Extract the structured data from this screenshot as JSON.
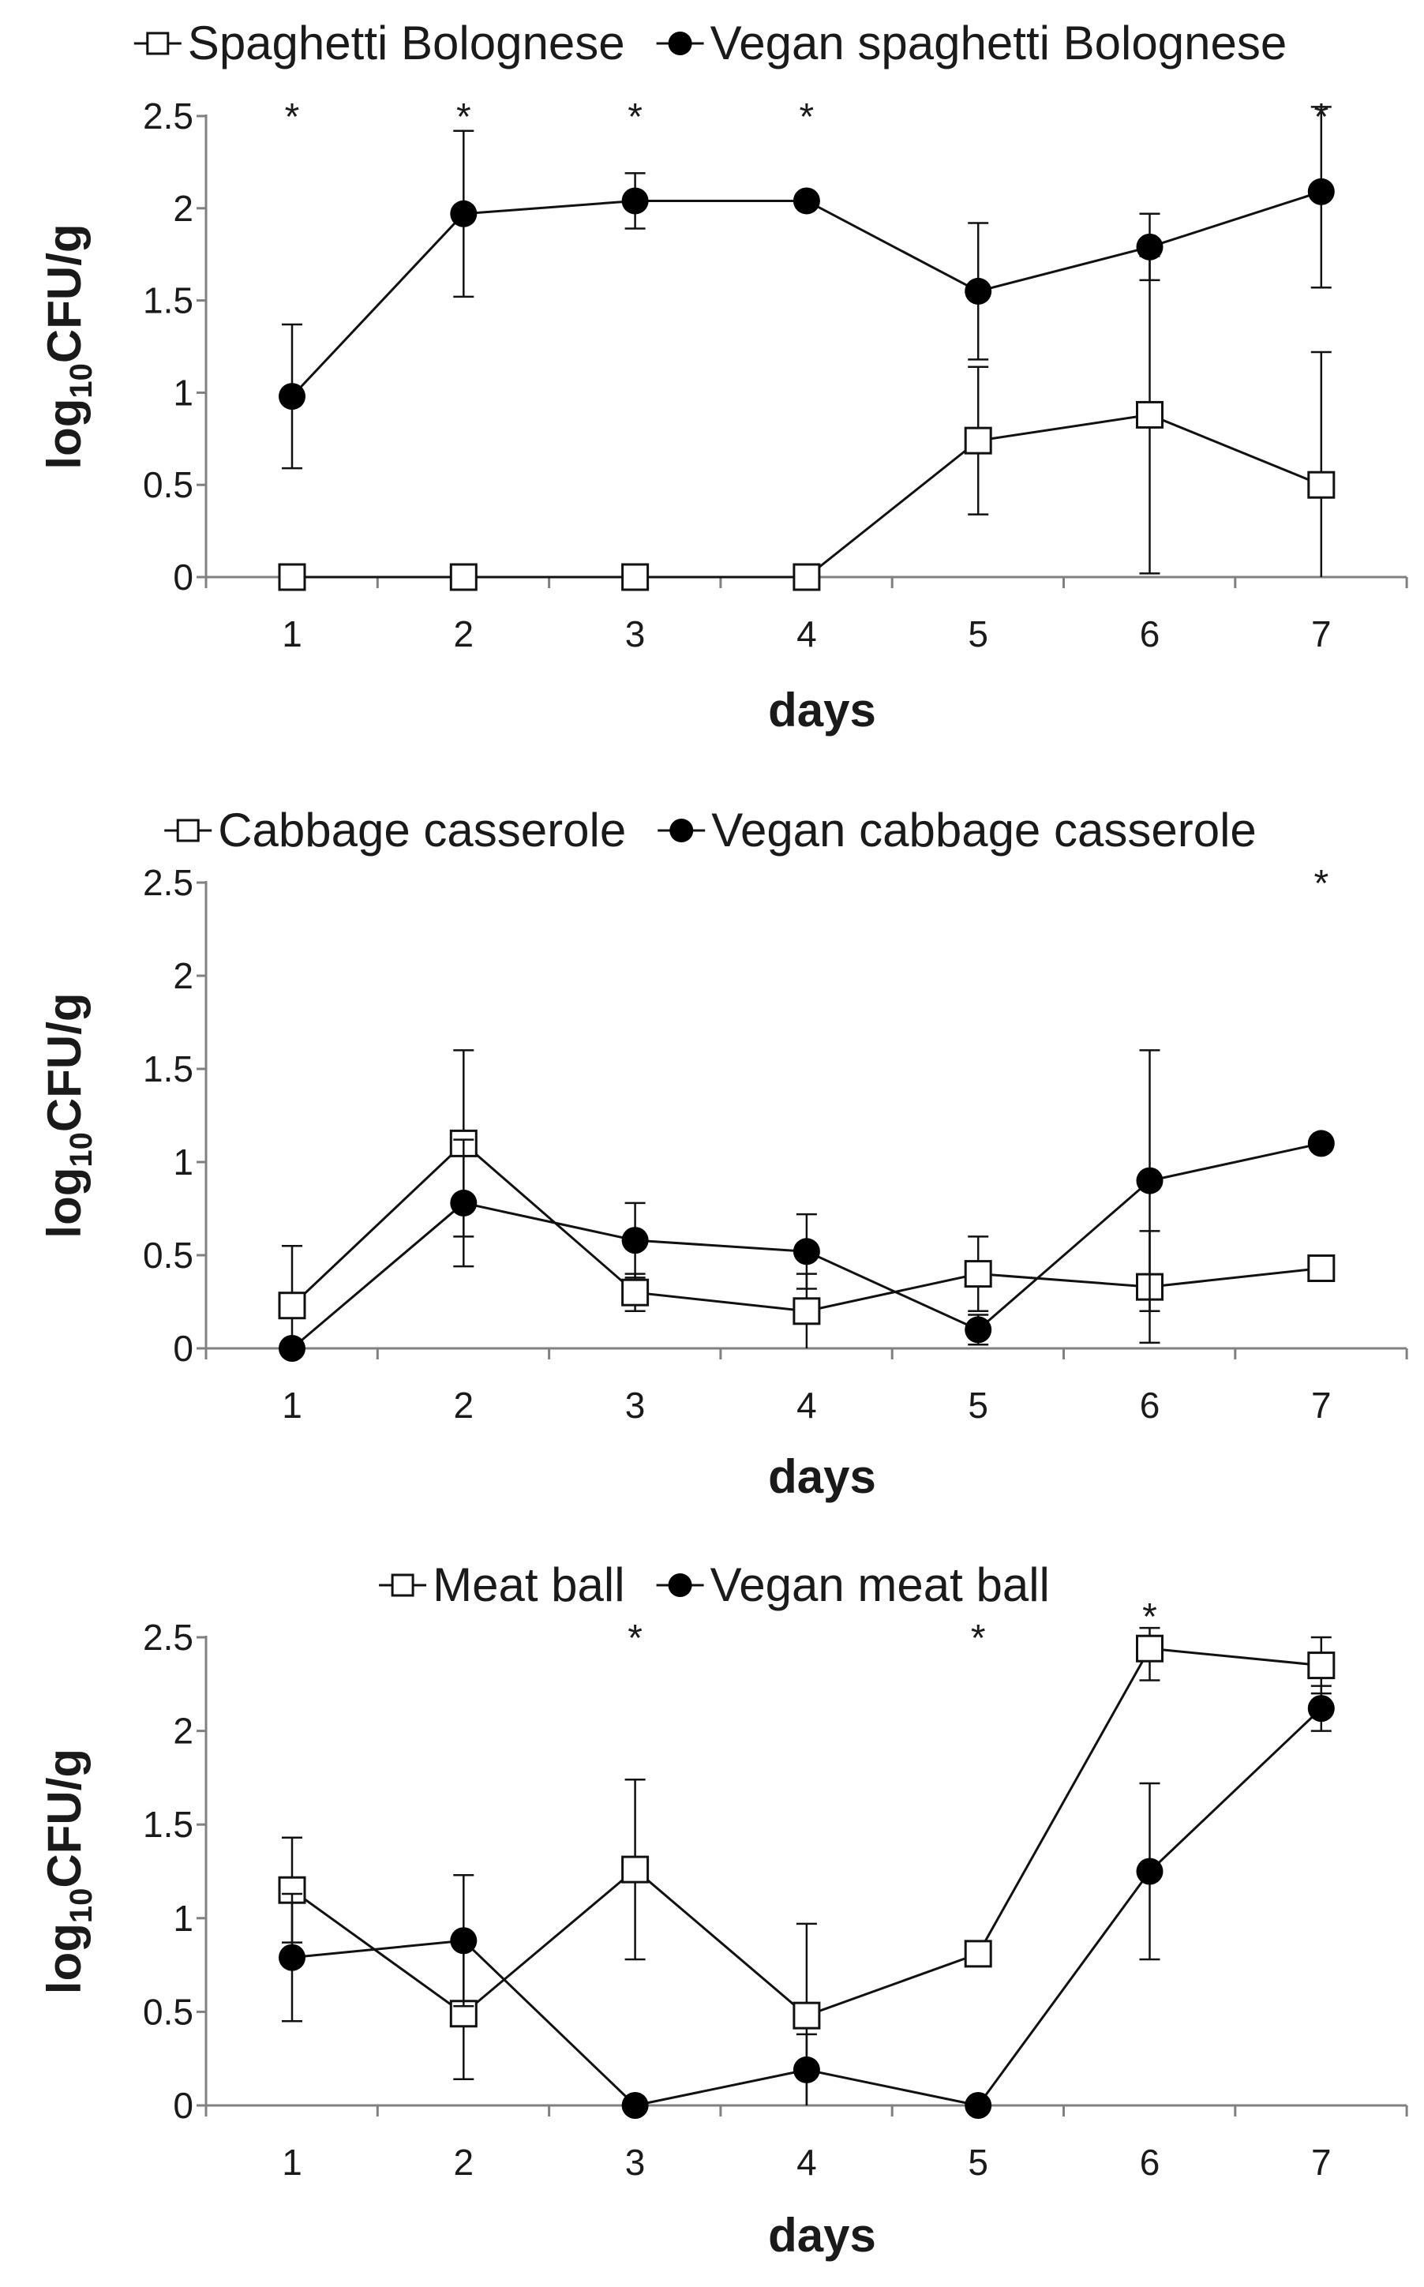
{
  "figure": {
    "panels": 3
  },
  "chart_data": [
    {
      "type": "line",
      "xlabel": "days",
      "ylabel_main": "log",
      "ylabel_sub": "10",
      "ylabel_tail": "CFU/g",
      "x": [
        1,
        2,
        3,
        4,
        5,
        6,
        7
      ],
      "ylim": [
        0,
        2.5
      ],
      "yticks": [
        "0",
        "0.5",
        "1",
        "1.5",
        "2",
        "2.5"
      ],
      "legend_position": "top",
      "series": [
        {
          "name": "Spaghetti Bolognese",
          "marker": "open-square",
          "values": [
            0,
            0,
            0,
            0,
            0.74,
            0.88,
            0.5
          ],
          "error": [
            0,
            0,
            0,
            0,
            0.4,
            0.86,
            0.72
          ]
        },
        {
          "name": "Vegan spaghetti Bolognese",
          "marker": "filled-circle",
          "values": [
            0.98,
            1.97,
            2.04,
            2.04,
            1.55,
            1.79,
            2.09
          ],
          "error": [
            0.39,
            0.45,
            0.15,
            0,
            0.37,
            0.18,
            0.52
          ]
        }
      ],
      "significance_marker": "*",
      "significant_days": [
        1,
        2,
        3,
        4,
        7
      ]
    },
    {
      "type": "line",
      "xlabel": "days",
      "ylabel_main": "log",
      "ylabel_sub": "10",
      "ylabel_tail": "CFU/g",
      "x": [
        1,
        2,
        3,
        4,
        5,
        6,
        7
      ],
      "ylim": [
        0,
        2.5
      ],
      "yticks": [
        "0",
        "0.5",
        "1",
        "1.5",
        "2",
        "2.5"
      ],
      "legend_position": "top",
      "series": [
        {
          "name": "Cabbage casserole",
          "marker": "open-square",
          "values": [
            0.23,
            1.1,
            0.3,
            0.2,
            0.4,
            0.33,
            0.43
          ],
          "error": [
            0.32,
            0.5,
            0.1,
            0.2,
            0.2,
            0.3,
            0
          ]
        },
        {
          "name": "Vegan cabbage casserole",
          "marker": "filled-circle",
          "values": [
            0,
            0.78,
            0.58,
            0.52,
            0.1,
            0.9,
            1.1
          ],
          "error": [
            0,
            0.34,
            0.2,
            0.2,
            0.08,
            0.7,
            0
          ]
        }
      ],
      "significance_marker": "*",
      "significant_days": [
        7
      ]
    },
    {
      "type": "line",
      "xlabel": "days",
      "ylabel_main": "log",
      "ylabel_sub": "10",
      "ylabel_tail": "CFU/g",
      "x": [
        1,
        2,
        3,
        4,
        5,
        6,
        7
      ],
      "ylim": [
        0,
        2.5
      ],
      "yticks": [
        "0",
        "0.5",
        "1",
        "1.5",
        "2",
        "2.5"
      ],
      "legend_position": "top",
      "series": [
        {
          "name": "Meat ball",
          "marker": "open-square",
          "values": [
            1.15,
            0.49,
            1.26,
            0.48,
            0.81,
            2.44,
            2.35
          ],
          "error": [
            0.28,
            0.35,
            0.48,
            0.49,
            0,
            0.17,
            0.15
          ]
        },
        {
          "name": "Vegan meat ball",
          "marker": "filled-circle",
          "values": [
            0.79,
            0.88,
            0,
            0.19,
            0,
            1.25,
            2.12
          ],
          "error": [
            0.34,
            0.35,
            0,
            0.19,
            0,
            0.47,
            0.12
          ]
        }
      ],
      "significance_marker": "*",
      "significant_days": [
        3,
        5,
        6
      ]
    }
  ]
}
